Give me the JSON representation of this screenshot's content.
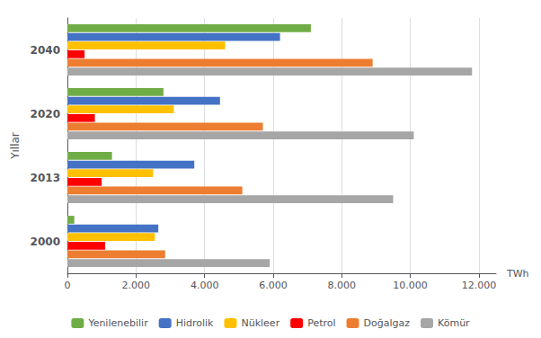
{
  "chart_data": {
    "type": "bar",
    "orientation": "horizontal",
    "categories": [
      "2000",
      "2013",
      "2020",
      "2040"
    ],
    "series": [
      {
        "name": "Yenilenebilir",
        "color": "#70ad47",
        "values": [
          200,
          1300,
          2800,
          7100
        ]
      },
      {
        "name": "Hidrolik",
        "color": "#4472c4",
        "values": [
          2650,
          3700,
          4450,
          6200
        ]
      },
      {
        "name": "Nükleer",
        "color": "#ffc000",
        "values": [
          2550,
          2500,
          3100,
          4600
        ]
      },
      {
        "name": "Petrol",
        "color": "#ff0000",
        "values": [
          1100,
          1000,
          800,
          500
        ]
      },
      {
        "name": "Doğalgaz",
        "color": "#ed7d31",
        "values": [
          2850,
          5100,
          5700,
          8900
        ]
      },
      {
        "name": "Kömür",
        "color": "#a6a6a6",
        "values": [
          5900,
          9500,
          10100,
          11800
        ]
      }
    ],
    "xlabel": "TWh",
    "ylabel": "Yıllar",
    "xlim": [
      0,
      12500
    ],
    "xticks": [
      0,
      {
        "value": 2000,
        "label": "2.000"
      },
      {
        "value": 4000,
        "label": "4.000"
      },
      {
        "value": 6000,
        "label": "6.000"
      },
      {
        "value": 8000,
        "label": "8.000"
      },
      {
        "value": 10000,
        "label": "10.000"
      },
      {
        "value": 12000,
        "label": "12.000"
      }
    ],
    "grid": true,
    "legend": "bottom"
  }
}
